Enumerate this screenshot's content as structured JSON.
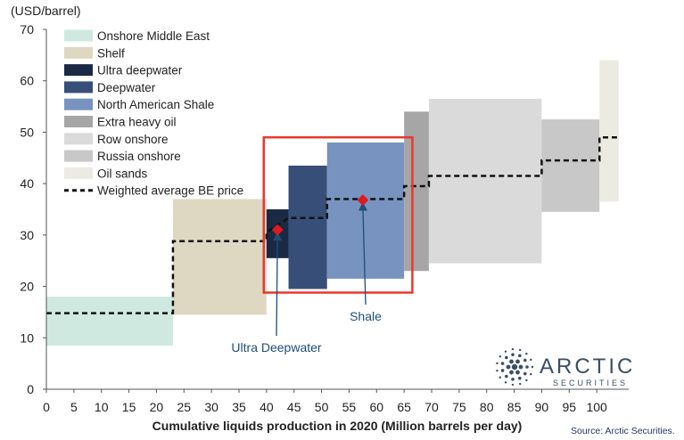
{
  "chart_data": {
    "type": "cost-curve",
    "ylabel": "(USD/barrel)",
    "xlabel": "Cumulative liquids production in 2020 (Million barrels per day)",
    "xlim": [
      0,
      105
    ],
    "ylim": [
      0,
      70
    ],
    "x_ticks": [
      "0",
      "5",
      "10",
      "15",
      "20",
      "25",
      "30",
      "35",
      "40",
      "45",
      "50",
      "55",
      "60",
      "65",
      "70",
      "75",
      "80",
      "85",
      "90",
      "95",
      "100"
    ],
    "y_ticks": [
      "0",
      "10",
      "20",
      "30",
      "40",
      "50",
      "60",
      "70"
    ],
    "segments": [
      {
        "name": "Onshore Middle East",
        "color": "#cfe9e1",
        "x0": 0,
        "x1": 23,
        "y_low": 8.5,
        "y_high": 18
      },
      {
        "name": "Shelf",
        "color": "#ded7c2",
        "x0": 23,
        "x1": 40,
        "y_low": 14.5,
        "y_high": 37
      },
      {
        "name": "Ultra deepwater",
        "color": "#1b2a44",
        "x0": 40,
        "x1": 44,
        "y_low": 25.5,
        "y_high": 35
      },
      {
        "name": "Deepwater",
        "color": "#374f78",
        "x0": 44,
        "x1": 51,
        "y_low": 19.5,
        "y_high": 43.5
      },
      {
        "name": "North American Shale",
        "color": "#7893bf",
        "x0": 51,
        "x1": 65,
        "y_low": 21.5,
        "y_high": 48
      },
      {
        "name": "Extra heavy oil",
        "color": "#a6a6a6",
        "x0": 65,
        "x1": 69.5,
        "y_low": 23,
        "y_high": 54
      },
      {
        "name": "Row onshore",
        "color": "#dadada",
        "x0": 69.5,
        "x1": 90,
        "y_low": 24.5,
        "y_high": 56.5
      },
      {
        "name": "Russia onshore",
        "color": "#c8c8c8",
        "x0": 90,
        "x1": 100.5,
        "y_low": 34.5,
        "y_high": 52.5
      },
      {
        "name": "Oil sands",
        "color": "#ecebe3",
        "x0": 100.5,
        "x1": 104,
        "y_low": 36.5,
        "y_high": 64
      }
    ],
    "weighted_average_line": {
      "name": "Weighted average BE price",
      "points": [
        [
          0,
          14.8
        ],
        [
          23,
          14.8
        ],
        [
          23,
          28.8
        ],
        [
          40,
          28.8
        ],
        [
          40,
          30.5
        ],
        [
          44,
          33.3
        ],
        [
          51,
          33.3
        ],
        [
          51,
          37
        ],
        [
          65,
          37
        ],
        [
          65,
          39.5
        ],
        [
          69.5,
          39.5
        ],
        [
          69.5,
          41.5
        ],
        [
          90,
          41.5
        ],
        [
          90,
          44.5
        ],
        [
          100.5,
          44.5
        ],
        [
          100.5,
          49
        ],
        [
          104,
          49
        ]
      ]
    },
    "annotations": [
      {
        "label": "Ultra Deepwater",
        "point": [
          42,
          31
        ]
      },
      {
        "label": "Shale",
        "point": [
          57.5,
          36.8
        ]
      }
    ],
    "highlight_box": {
      "x0": 39.5,
      "x1": 66.5,
      "y0": 18.8,
      "y1": 49
    }
  },
  "logo": {
    "name": "ARCTIC",
    "tagline": "SECURITIES"
  },
  "source": "Source: Arctic Securities."
}
